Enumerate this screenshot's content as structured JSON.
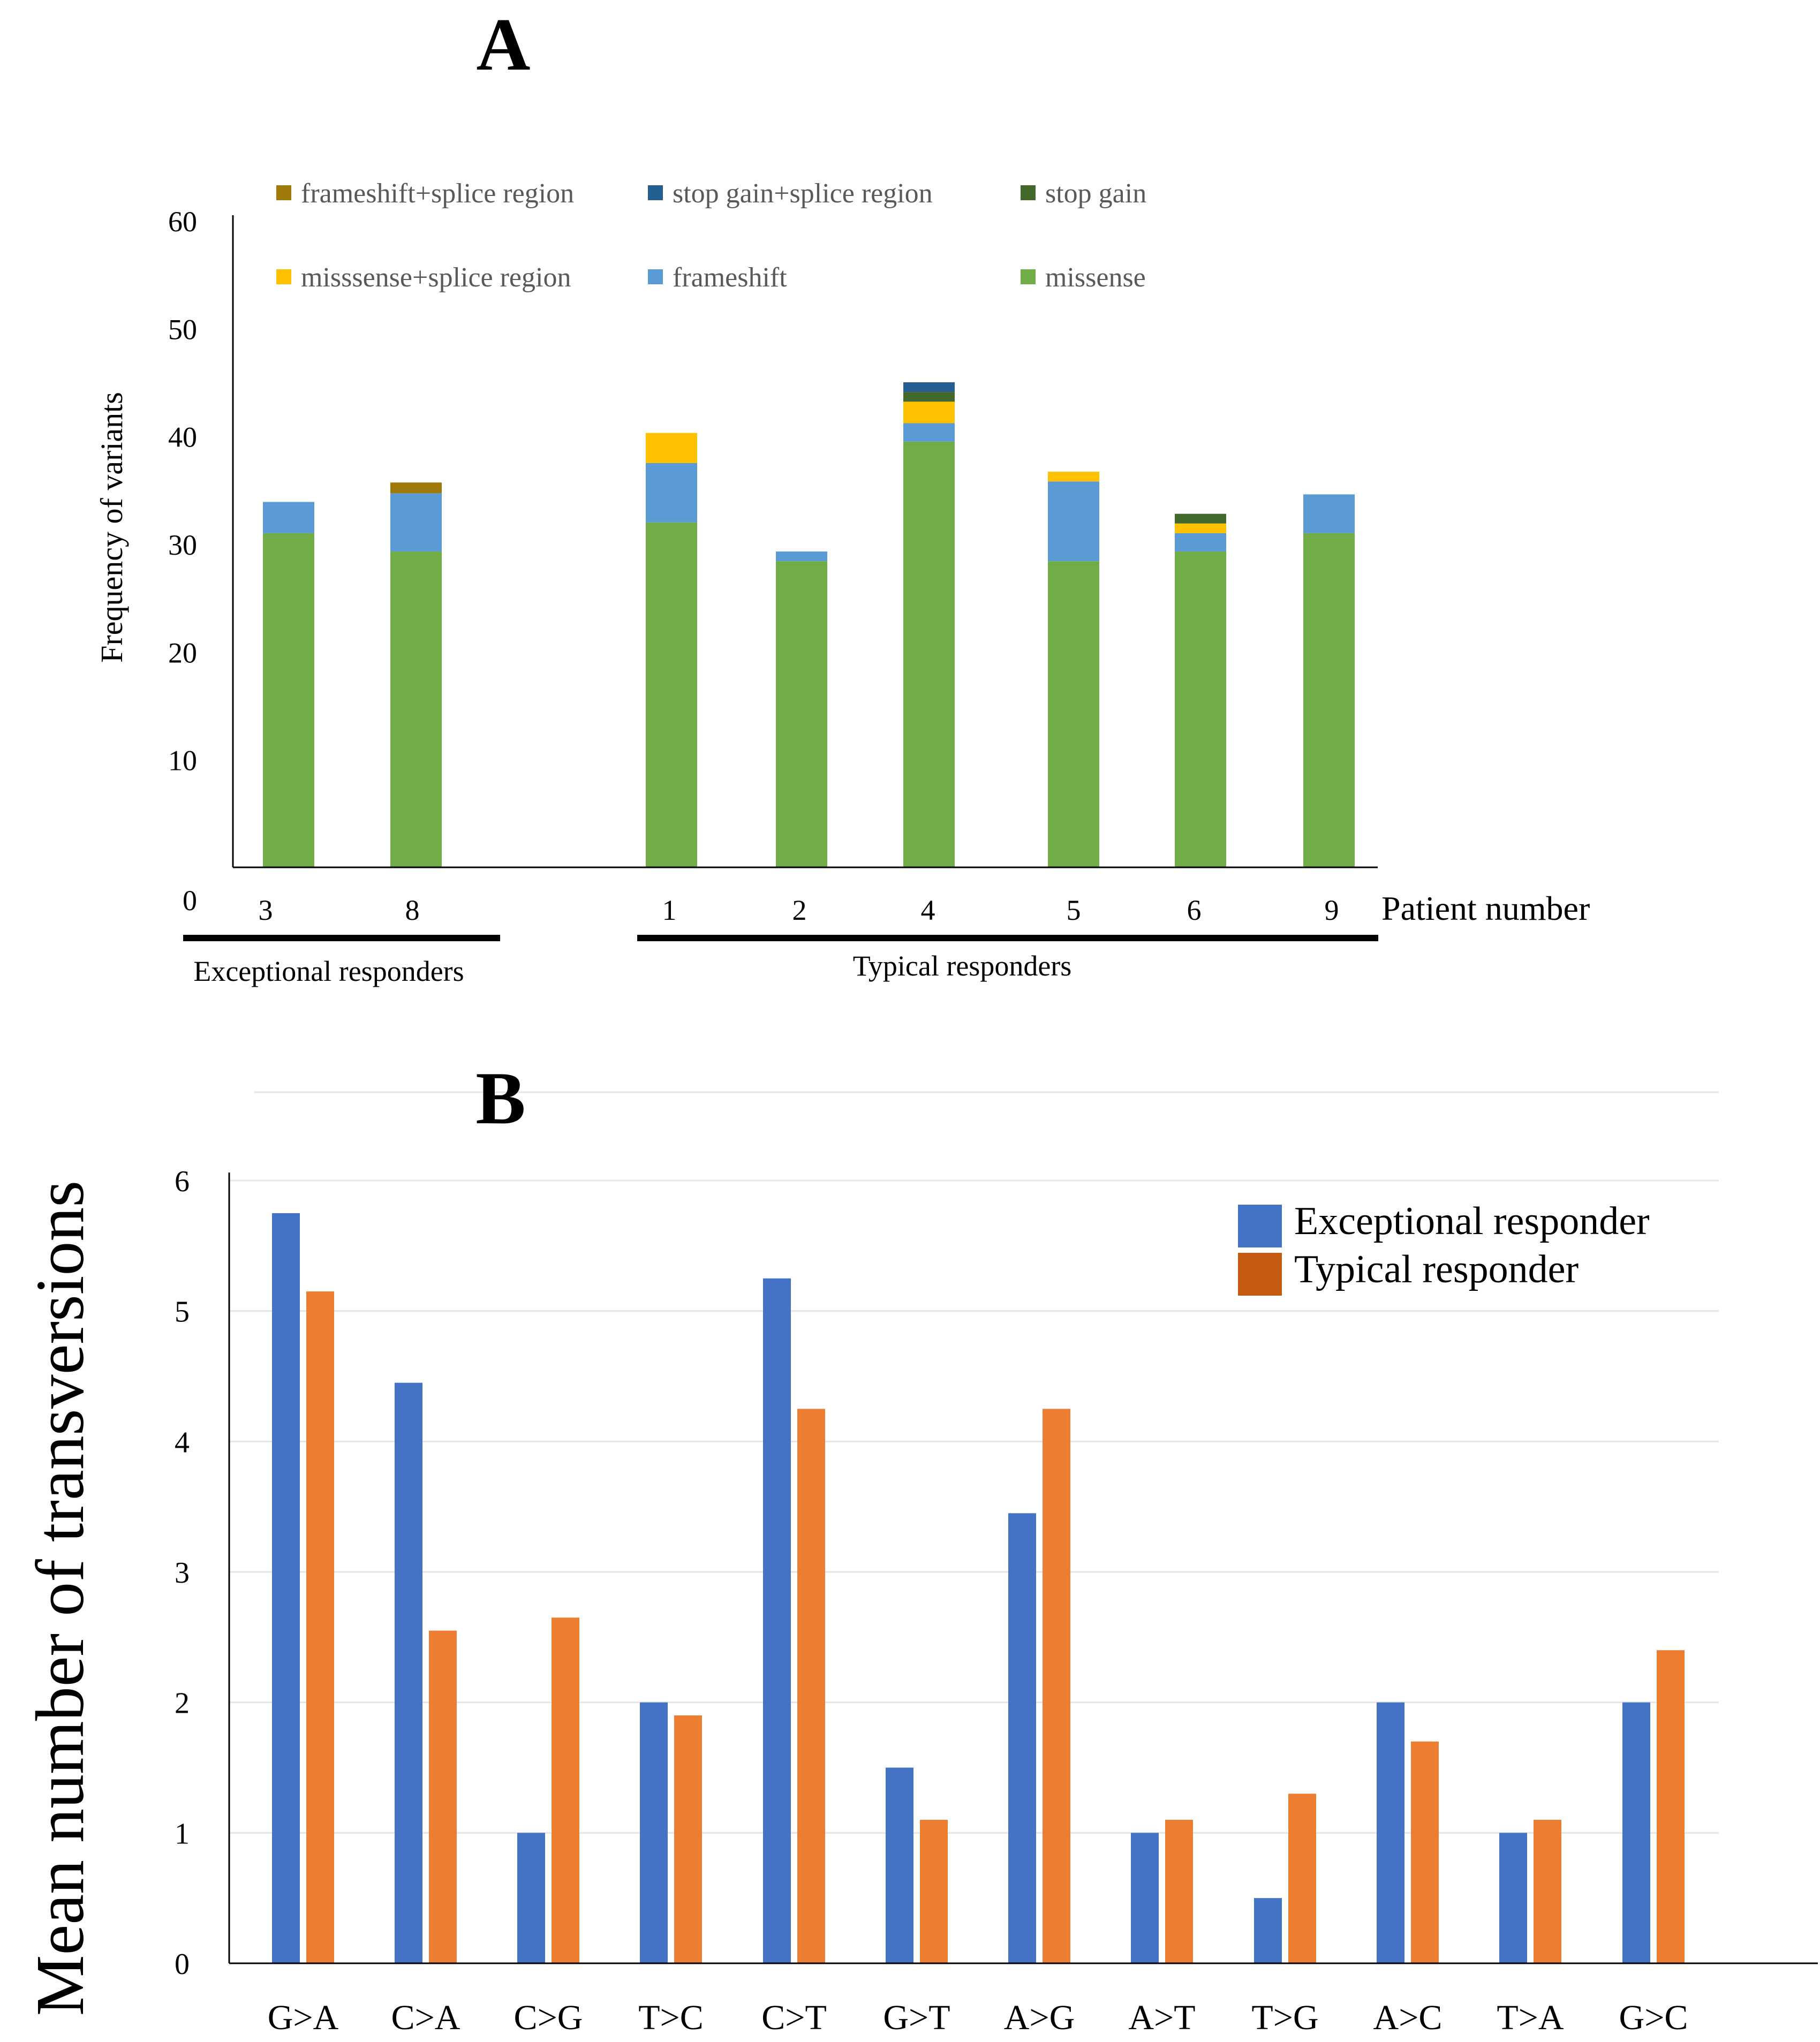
{
  "chart_data": [
    {
      "panel_label": "A",
      "type": "bar",
      "stacked": true,
      "title": "",
      "ylabel": "Frequency of variants",
      "xlabel": "Patient number",
      "ylim": [
        0,
        60
      ],
      "yticks": [
        0,
        10,
        20,
        30,
        40,
        50,
        60
      ],
      "categories": [
        "3",
        "8",
        "1",
        "2",
        "4",
        "5",
        "6",
        "9"
      ],
      "groups": [
        {
          "label": "Exceptional responders",
          "categories": [
            "3",
            "8"
          ]
        },
        {
          "label": "Typical responders",
          "categories": [
            "1",
            "2",
            "4",
            "5",
            "6",
            "9"
          ]
        }
      ],
      "legend_position": "top",
      "series": [
        {
          "name": "missense",
          "color": "#70AD47",
          "values": [
            31,
            29.3,
            32,
            28.4,
            39.5,
            28.4,
            29.3,
            31
          ]
        },
        {
          "name": "frameshift",
          "color": "#5B9BD5",
          "values": [
            2.9,
            5.4,
            5.5,
            0.9,
            1.7,
            7.4,
            1.7,
            3.6
          ]
        },
        {
          "name": "misssense+splice region",
          "color": "#FFC000",
          "values": [
            0,
            0,
            2.8,
            0,
            2,
            0.9,
            0.9,
            0
          ]
        },
        {
          "name": "stop gain",
          "color": "#43682B",
          "values": [
            0,
            0,
            0,
            0,
            0.9,
            0,
            0.9,
            0
          ]
        },
        {
          "name": "stop gain+splice region",
          "color": "#255E91",
          "values": [
            0,
            0,
            0,
            0,
            0.9,
            0,
            0,
            0
          ]
        },
        {
          "name": "frameshift+splice region",
          "color": "#9E7A0B",
          "values": [
            0,
            1,
            0,
            0,
            0,
            0,
            0,
            0
          ]
        }
      ],
      "legend_order": [
        "frameshift+splice region",
        "stop gain+splice region",
        "stop gain",
        "misssense+splice region",
        "frameshift",
        "missense"
      ]
    },
    {
      "panel_label": "B",
      "type": "bar",
      "stacked": false,
      "title": "",
      "ylabel": "Mean number of transversions",
      "xlabel": "",
      "ylim": [
        0,
        6
      ],
      "yticks": [
        0,
        1,
        2,
        3,
        4,
        5,
        6
      ],
      "grid": true,
      "legend_position": "top-right",
      "categories": [
        "G>A",
        "C>A",
        "C>G",
        "T>C",
        "C>T",
        "G>T",
        "A>G",
        "A>T",
        "T>G",
        "A>C",
        "T>A",
        "G>C"
      ],
      "series": [
        {
          "name": "Exceptional responder",
          "color": "#4472C4",
          "legend_color": "#4472C4",
          "values": [
            5.75,
            4.45,
            1,
            2,
            5.25,
            1.5,
            3.45,
            1,
            0.5,
            2,
            1,
            2
          ]
        },
        {
          "name": "Typical responder",
          "color": "#ED7D31",
          "legend_color": "#C55A11",
          "values": [
            5.15,
            2.55,
            2.65,
            1.9,
            4.25,
            1.1,
            4.25,
            1.1,
            1.3,
            1.7,
            1.1,
            2.4
          ]
        }
      ]
    }
  ]
}
